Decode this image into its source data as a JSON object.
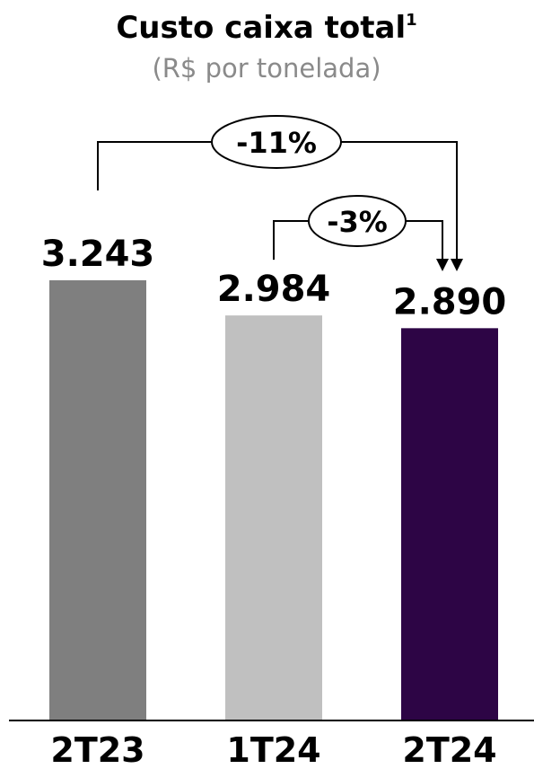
{
  "chart_data": {
    "type": "bar",
    "title": "Custo caixa total",
    "title_superscript": "1",
    "subtitle": "(R$ por tonelada)",
    "categories": [
      "2T23",
      "1T24",
      "2T24"
    ],
    "values": [
      3243,
      2984,
      2890
    ],
    "value_labels": [
      "3.243",
      "2.984",
      "2.890"
    ],
    "colors": [
      "#7f7f7f",
      "#c0c0c0",
      "#2d0545"
    ],
    "ylim": [
      0,
      3243
    ],
    "grid": false,
    "legend": "none",
    "annotations": [
      {
        "from": "2T23",
        "to": "2T24",
        "label": "-11%"
      },
      {
        "from": "1T24",
        "to": "2T24",
        "label": "-3%"
      }
    ]
  }
}
